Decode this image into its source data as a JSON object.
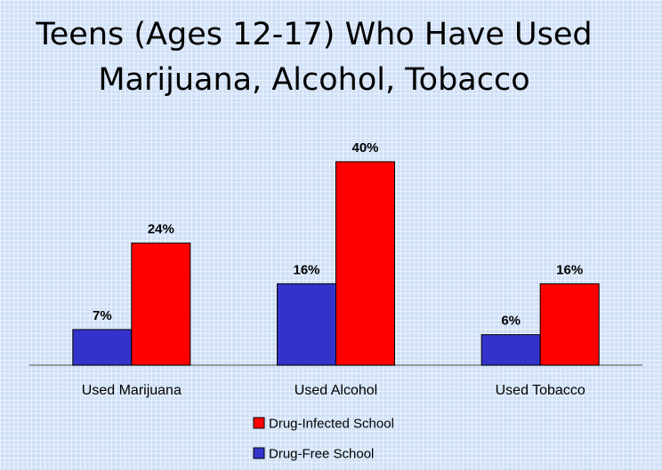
{
  "chart_data": {
    "type": "bar",
    "title_lines": [
      "Teens (Ages 12-17) Who Have Used",
      "Marijuana, Alcohol, Tobacco"
    ],
    "categories": [
      "Used Marijuana",
      "Used Alcohol",
      "Used Tobacco"
    ],
    "series": [
      {
        "name": "Drug-Free School",
        "values": [
          7,
          16,
          6
        ],
        "labels": [
          "7%",
          "16%",
          "6%"
        ],
        "color": "#3333cc"
      },
      {
        "name": "Drug-Infected School",
        "values": [
          24,
          40,
          16
        ],
        "labels": [
          "24%",
          "40%",
          "16%"
        ],
        "color": "#ff0000"
      }
    ],
    "ylim": [
      0,
      40
    ],
    "legend_order": [
      "Drug-Infected School",
      "Drug-Free School"
    ],
    "legend_placement": "bottom"
  }
}
